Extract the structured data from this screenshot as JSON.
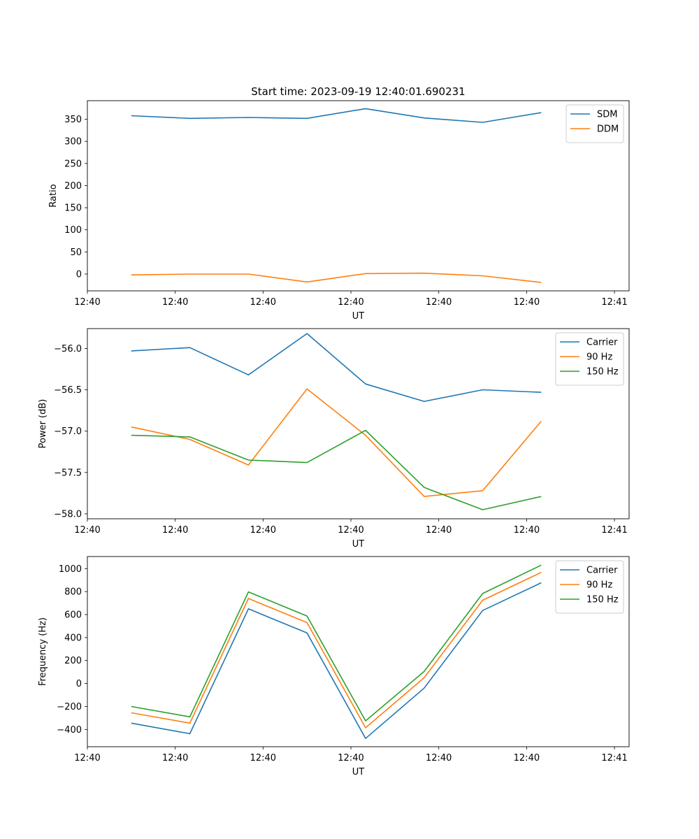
{
  "figure_title": "Start time: 2023-09-19 12:40:01.690231",
  "colors": {
    "blue": "#1f77b4",
    "orange": "#ff7f0e",
    "green": "#2ca02c"
  },
  "chart_data": [
    {
      "type": "line",
      "title": "Start time: 2023-09-19 12:40:01.690231",
      "xlabel": "UT",
      "ylabel": "Ratio",
      "x": [
        0,
        1,
        2,
        3,
        4,
        5,
        6,
        7
      ],
      "xlim": [
        -0.75,
        8.5
      ],
      "xticks": [
        -0.75,
        0.75,
        2.25,
        3.75,
        5.25,
        6.75,
        8.25
      ],
      "xticklabels": [
        "12:40",
        "12:40",
        "12:40",
        "12:40",
        "12:40",
        "12:40",
        "12:41"
      ],
      "ylim": [
        -38,
        392
      ],
      "yticks": [
        0,
        50,
        100,
        150,
        200,
        250,
        300,
        350
      ],
      "yticklabels": [
        "0",
        "50",
        "100",
        "150",
        "200",
        "250",
        "300",
        "350"
      ],
      "legend": "top-right",
      "series": [
        {
          "name": "SDM",
          "color": "#1f77b4",
          "values": [
            358,
            352,
            354,
            352,
            374,
            353,
            343,
            365
          ]
        },
        {
          "name": "DDM",
          "color": "#ff7f0e",
          "values": [
            -2,
            0,
            0,
            -18,
            1,
            2,
            -4,
            -19
          ]
        }
      ]
    },
    {
      "type": "line",
      "title": "",
      "xlabel": "UT",
      "ylabel": "Power (dB)",
      "x": [
        0,
        1,
        2,
        3,
        4,
        5,
        6,
        7
      ],
      "xlim": [
        -0.75,
        8.5
      ],
      "xticks": [
        -0.75,
        0.75,
        2.25,
        3.75,
        5.25,
        6.75,
        8.25
      ],
      "xticklabels": [
        "12:40",
        "12:40",
        "12:40",
        "12:40",
        "12:40",
        "12:40",
        "12:41"
      ],
      "ylim": [
        -58.06,
        -55.76
      ],
      "yticks": [
        -58.0,
        -57.5,
        -57.0,
        -56.5,
        -56.0
      ],
      "yticklabels": [
        "−58.0",
        "−57.5",
        "−57.0",
        "−56.5",
        "−56.0"
      ],
      "legend": "top-right",
      "series": [
        {
          "name": "Carrier",
          "color": "#1f77b4",
          "values": [
            -56.03,
            -55.99,
            -56.32,
            -55.82,
            -56.43,
            -56.64,
            -56.5,
            -56.53
          ]
        },
        {
          "name": "90 Hz",
          "color": "#ff7f0e",
          "values": [
            -56.95,
            -57.1,
            -57.41,
            -56.49,
            -57.05,
            -57.79,
            -57.72,
            -56.88
          ]
        },
        {
          "name": "150 Hz",
          "color": "#2ca02c",
          "values": [
            -57.05,
            -57.07,
            -57.35,
            -57.38,
            -56.99,
            -57.68,
            -57.95,
            -57.79
          ]
        }
      ]
    },
    {
      "type": "line",
      "title": "",
      "xlabel": "UT",
      "ylabel": "Frequency (Hz)",
      "x": [
        0,
        1,
        2,
        3,
        4,
        5,
        6,
        7
      ],
      "xlim": [
        -0.75,
        8.5
      ],
      "xticks": [
        -0.75,
        0.75,
        2.25,
        3.75,
        5.25,
        6.75,
        8.25
      ],
      "xticklabels": [
        "12:40",
        "12:40",
        "12:40",
        "12:40",
        "12:40",
        "12:40",
        "12:41"
      ],
      "ylim": [
        -550,
        1105
      ],
      "yticks": [
        -400,
        -200,
        0,
        200,
        400,
        600,
        800,
        1000
      ],
      "yticklabels": [
        "−400",
        "−200",
        "0",
        "200",
        "400",
        "600",
        "800",
        "1000"
      ],
      "legend": "top-right",
      "series": [
        {
          "name": "Carrier",
          "color": "#1f77b4",
          "values": [
            -345,
            -437,
            650,
            440,
            -478,
            -40,
            635,
            877
          ]
        },
        {
          "name": "90 Hz",
          "color": "#ff7f0e",
          "values": [
            -255,
            -345,
            740,
            530,
            -385,
            50,
            725,
            967
          ]
        },
        {
          "name": "150 Hz",
          "color": "#2ca02c",
          "values": [
            -200,
            -290,
            797,
            587,
            -325,
            105,
            783,
            1030
          ]
        }
      ]
    }
  ]
}
